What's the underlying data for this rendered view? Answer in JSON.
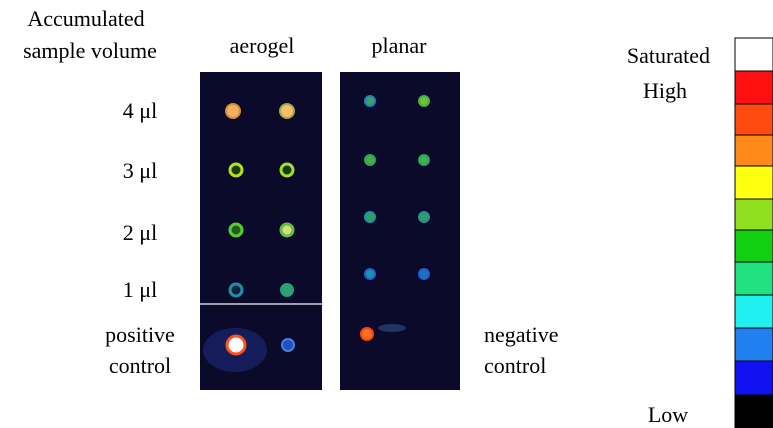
{
  "figure": {
    "header": {
      "line1": "Accumulated",
      "line2": "sample volume"
    },
    "columns": [
      "aerogel",
      "planar"
    ],
    "rows": [
      "4 μl",
      "3 μl",
      "2 μl",
      "1 μl"
    ],
    "positive_control": [
      "positive",
      "control"
    ],
    "negative_control": [
      "negative",
      "control"
    ],
    "scale": {
      "top": "Saturated",
      "high": "High",
      "low": "Low"
    }
  }
}
